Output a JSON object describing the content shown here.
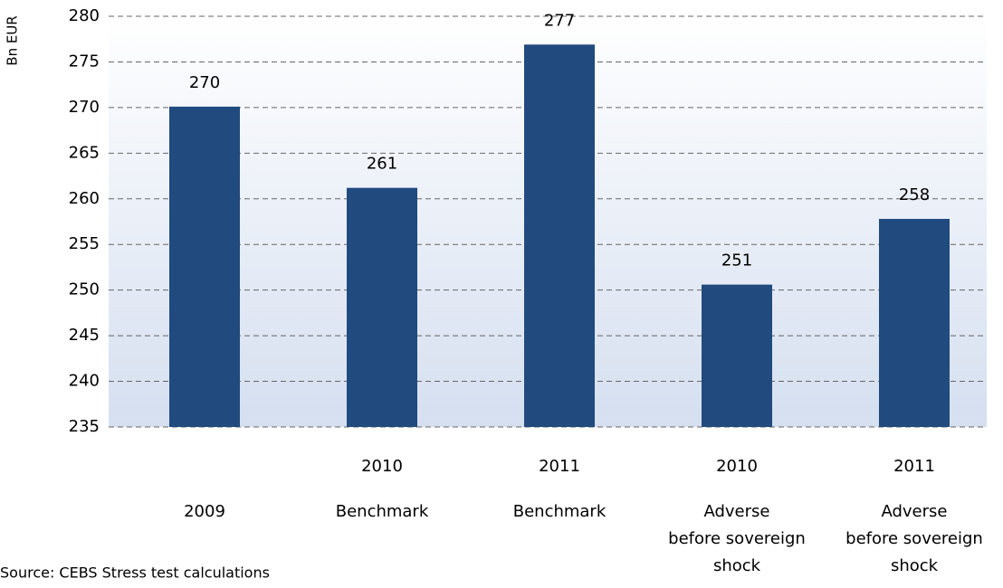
{
  "chart_data": {
    "type": "bar",
    "y_label": "Bn EUR",
    "categories": [
      [
        "2009"
      ],
      [
        "2010",
        "Benchmark"
      ],
      [
        "2011",
        "Benchmark"
      ],
      [
        "2010",
        "Adverse",
        "before sovereign",
        "shock"
      ],
      [
        "2011",
        "Adverse",
        "before sovereign",
        "shock"
      ]
    ],
    "values": [
      270.1,
      261.2,
      276.9,
      250.6,
      257.8
    ],
    "value_labels": [
      "270",
      "261",
      "277",
      "251",
      "258"
    ],
    "color": "#214a7e",
    "ylim": [
      235,
      280
    ],
    "yticks": [
      235,
      240,
      245,
      250,
      255,
      260,
      265,
      270,
      275,
      280
    ],
    "grid": true,
    "source": "Source: CEBS Stress test calculations"
  }
}
